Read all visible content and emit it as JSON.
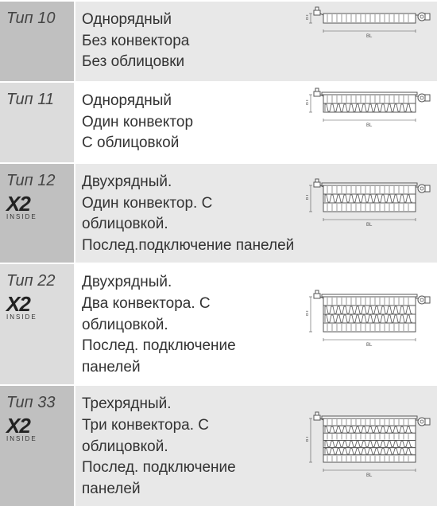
{
  "rows": [
    {
      "type": "Тип 10",
      "shaded": true,
      "x2": false,
      "desc": [
        "Однорядный",
        "Без конвектора",
        "Без облицовки"
      ],
      "diagram": {
        "panels": 1,
        "convectors": 0,
        "top_cover": false
      }
    },
    {
      "type": "Тип 11",
      "shaded": false,
      "x2": false,
      "desc": [
        "Однорядный",
        "Один конвектор",
        "С облицовкой"
      ],
      "diagram": {
        "panels": 1,
        "convectors": 1,
        "top_cover": true
      }
    },
    {
      "type": "Тип 12",
      "shaded": true,
      "x2": true,
      "desc": [
        "Двухрядный.",
        "Один конвектор. С облицовкой.",
        "Послед.подключение панелей"
      ],
      "diagram": {
        "panels": 2,
        "convectors": 1,
        "top_cover": true
      }
    },
    {
      "type": "Тип 22",
      "shaded": false,
      "x2": true,
      "desc": [
        "Двухрядный.",
        "Два конвектора. С облицовкой.",
        "Послед. подключение панелей"
      ],
      "diagram": {
        "panels": 2,
        "convectors": 2,
        "top_cover": true
      }
    },
    {
      "type": "Тип 33",
      "shaded": true,
      "x2": true,
      "desc": [
        "Трехрядный.",
        "Три конвектора. С облицовкой.",
        "Послед. подключение панелей"
      ],
      "diagram": {
        "panels": 3,
        "convectors": 3,
        "top_cover": true
      }
    }
  ],
  "labels": {
    "bt": "BT",
    "bl": "BL",
    "x2": "X2",
    "inside": "INSIDE"
  },
  "colors": {
    "shaded_type": "#c0c0c0",
    "unshaded_type": "#dcdcdc",
    "shaded_cells": "#e8e8e8",
    "text": "#333333",
    "diagram_stroke": "#555555",
    "diagram_fill": "#ffffff"
  }
}
